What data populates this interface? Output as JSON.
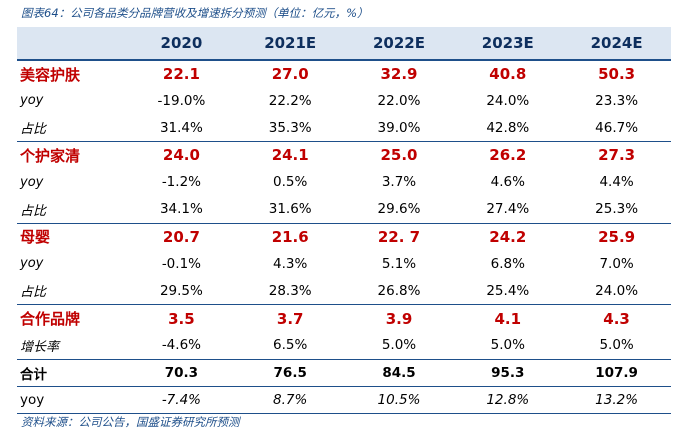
{
  "caption": "图表64：公司各品类分品牌营收及增速拆分预测（单位：亿元，%）",
  "source": "资料来源：公司公告，国盛证券研究所预测",
  "table": {
    "years": [
      "2020",
      "2021E",
      "2022E",
      "2023E",
      "2024E"
    ],
    "rows": [
      {
        "label": "美容护肤",
        "type": "cat",
        "values": [
          "22.1",
          "27.0",
          "32.9",
          "40.8",
          "50.3"
        ]
      },
      {
        "label": "yoy",
        "type": "sub",
        "values": [
          "-19.0%",
          "22.2%",
          "22.0%",
          "24.0%",
          "23.3%"
        ]
      },
      {
        "label": "占比",
        "type": "sub",
        "values": [
          "31.4%",
          "35.3%",
          "39.0%",
          "42.8%",
          "46.7%"
        ]
      },
      {
        "label": "个护家清",
        "type": "cat",
        "values": [
          "24.0",
          "24.1",
          "25.0",
          "26.2",
          "27.3"
        ]
      },
      {
        "label": "yoy",
        "type": "sub",
        "values": [
          "-1.2%",
          "0.5%",
          "3.7%",
          "4.6%",
          "4.4%"
        ]
      },
      {
        "label": "占比",
        "type": "sub",
        "values": [
          "34.1%",
          "31.6%",
          "29.6%",
          "27.4%",
          "25.3%"
        ]
      },
      {
        "label": "母婴",
        "type": "cat",
        "values": [
          "20.7",
          "21.6",
          "22. 7",
          "24.2",
          "25.9"
        ]
      },
      {
        "label": "yoy",
        "type": "sub",
        "values": [
          "-0.1%",
          "4.3%",
          "5.1%",
          "6.8%",
          "7.0%"
        ]
      },
      {
        "label": "占比",
        "type": "sub",
        "values": [
          "29.5%",
          "28.3%",
          "26.8%",
          "25.4%",
          "24.0%"
        ]
      },
      {
        "label": "合作品牌",
        "type": "cat",
        "values": [
          "3.5",
          "3.7",
          "3.9",
          "4.1",
          "4.3"
        ]
      },
      {
        "label": "增长率",
        "type": "sub",
        "values": [
          "-4.6%",
          "6.5%",
          "5.0%",
          "5.0%",
          "5.0%"
        ]
      },
      {
        "label": "合计",
        "type": "total",
        "values": [
          "70.3",
          "76.5",
          "84.5",
          "95.3",
          "107.9"
        ]
      },
      {
        "label": "yoy",
        "type": "yoyfinal",
        "values": [
          "-7.4%",
          "8.7%",
          "10.5%",
          "12.8%",
          "13.2%"
        ]
      }
    ]
  }
}
